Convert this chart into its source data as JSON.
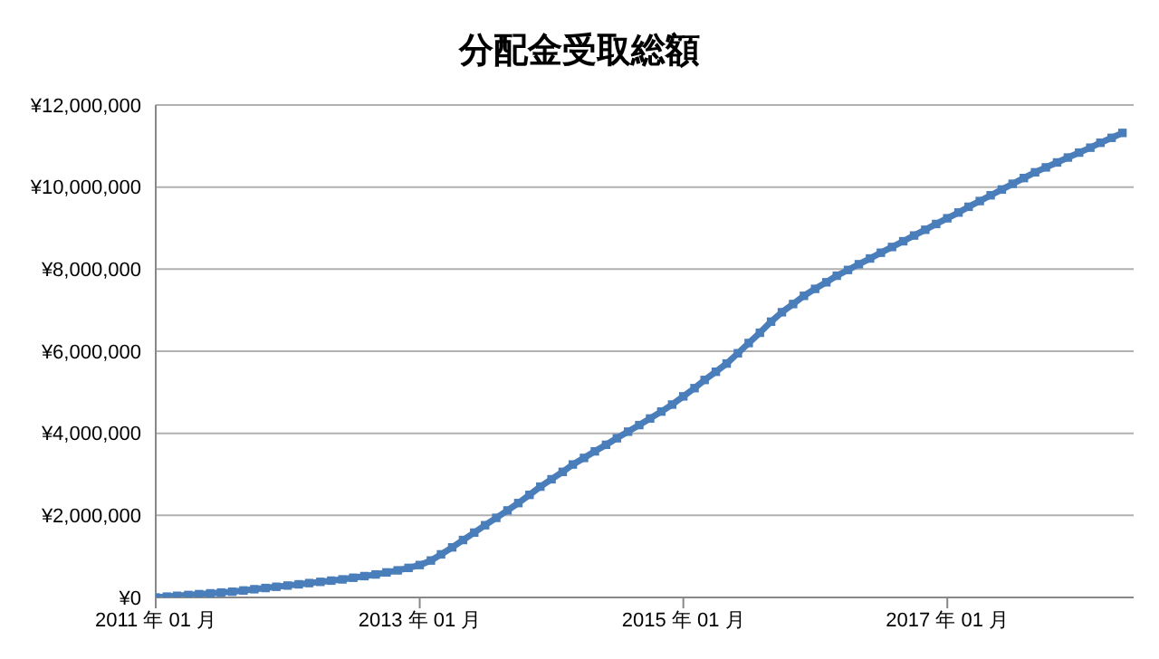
{
  "chart_data": {
    "type": "line",
    "title": "分配金受取総額",
    "x": [
      "2011-01",
      "2011-02",
      "2011-03",
      "2011-04",
      "2011-05",
      "2011-06",
      "2011-07",
      "2011-08",
      "2011-09",
      "2011-10",
      "2011-11",
      "2011-12",
      "2012-01",
      "2012-02",
      "2012-03",
      "2012-04",
      "2012-05",
      "2012-06",
      "2012-07",
      "2012-08",
      "2012-09",
      "2012-10",
      "2012-11",
      "2012-12",
      "2013-01",
      "2013-02",
      "2013-03",
      "2013-04",
      "2013-05",
      "2013-06",
      "2013-07",
      "2013-08",
      "2013-09",
      "2013-10",
      "2013-11",
      "2013-12",
      "2014-01",
      "2014-02",
      "2014-03",
      "2014-04",
      "2014-05",
      "2014-06",
      "2014-07",
      "2014-08",
      "2014-09",
      "2014-10",
      "2014-11",
      "2014-12",
      "2015-01",
      "2015-02",
      "2015-03",
      "2015-04",
      "2015-05",
      "2015-06",
      "2015-07",
      "2015-08",
      "2015-09",
      "2015-10",
      "2015-11",
      "2015-12",
      "2016-01",
      "2016-02",
      "2016-03",
      "2016-04",
      "2016-05",
      "2016-06",
      "2016-07",
      "2016-08",
      "2016-09",
      "2016-10",
      "2016-11",
      "2016-12",
      "2017-01",
      "2017-02",
      "2017-03",
      "2017-04",
      "2017-05",
      "2017-06",
      "2017-07",
      "2017-08",
      "2017-09",
      "2017-10",
      "2017-11",
      "2017-12",
      "2018-01",
      "2018-02",
      "2018-03",
      "2018-04",
      "2018-05"
    ],
    "series": [
      {
        "color": "#4a7ebb",
        "values": [
          0,
          20000,
          40000,
          60000,
          80000,
          100000,
          120000,
          140000,
          170000,
          200000,
          230000,
          260000,
          290000,
          320000,
          350000,
          380000,
          410000,
          440000,
          480000,
          520000,
          560000,
          610000,
          660000,
          720000,
          790000,
          900000,
          1050000,
          1220000,
          1400000,
          1580000,
          1760000,
          1940000,
          2120000,
          2300000,
          2500000,
          2700000,
          2880000,
          3060000,
          3240000,
          3400000,
          3560000,
          3720000,
          3880000,
          4040000,
          4200000,
          4360000,
          4530000,
          4700000,
          4900000,
          5100000,
          5300000,
          5500000,
          5700000,
          5950000,
          6200000,
          6450000,
          6720000,
          6950000,
          7150000,
          7350000,
          7520000,
          7680000,
          7840000,
          7980000,
          8120000,
          8260000,
          8400000,
          8540000,
          8680000,
          8820000,
          8960000,
          9100000,
          9240000,
          9380000,
          9520000,
          9660000,
          9800000,
          9940000,
          10080000,
          10220000,
          10360000,
          10480000,
          10600000,
          10720000,
          10840000,
          10960000,
          11080000,
          11200000,
          11320000
        ]
      }
    ],
    "xlim": [
      "2011-01",
      "2018-06"
    ],
    "xticks": [
      {
        "value": "2011-01",
        "label": "2011 年 01 月"
      },
      {
        "value": "2013-01",
        "label": "2013 年 01 月"
      },
      {
        "value": "2015-01",
        "label": "2015 年 01 月"
      },
      {
        "value": "2017-01",
        "label": "2017 年 01 月"
      }
    ],
    "ylim": [
      0,
      12000000
    ],
    "yticks": [
      {
        "value": 0,
        "label": "¥0"
      },
      {
        "value": 2000000,
        "label": "¥2,000,000"
      },
      {
        "value": 4000000,
        "label": "¥4,000,000"
      },
      {
        "value": 6000000,
        "label": "¥6,000,000"
      },
      {
        "value": 8000000,
        "label": "¥8,000,000"
      },
      {
        "value": 10000000,
        "label": "¥10,000,000"
      },
      {
        "value": 12000000,
        "label": "¥12,000,000"
      }
    ],
    "grid": "y",
    "marker": "square",
    "line_style": "solid",
    "legend": false
  }
}
